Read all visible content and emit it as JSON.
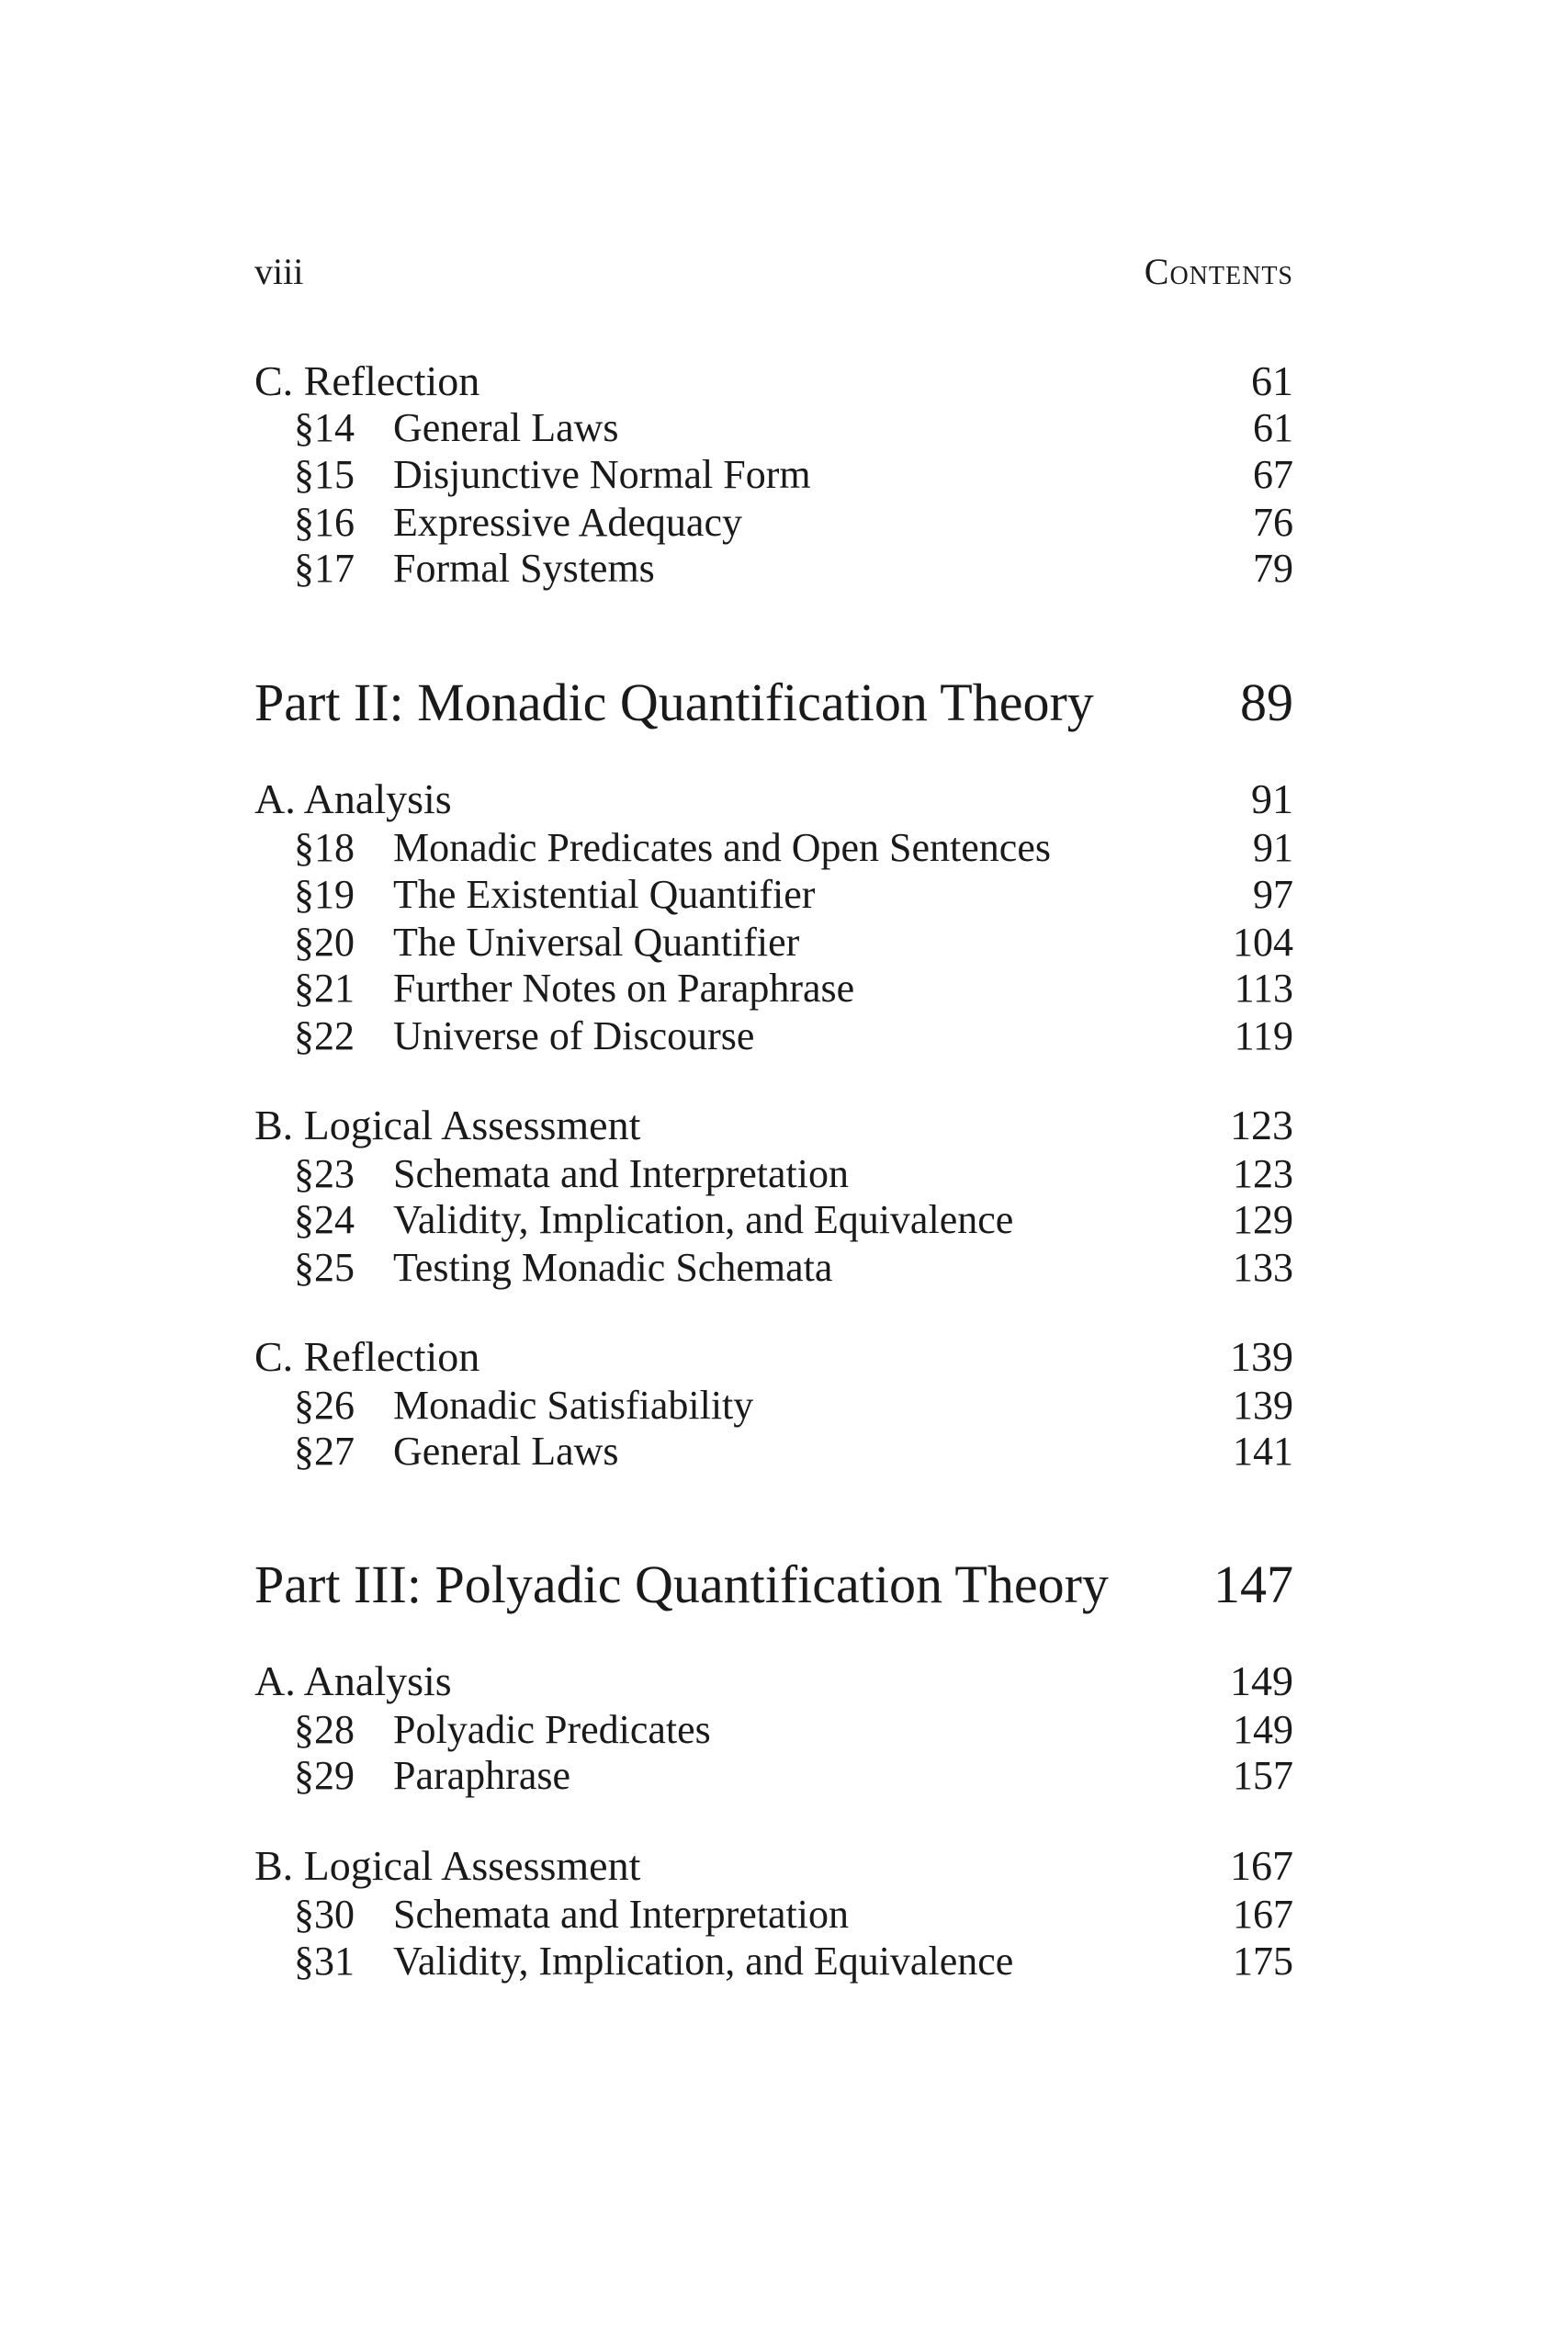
{
  "header": {
    "page_number": "viii",
    "running_title": "Contents"
  },
  "toc": [
    {
      "kind": "section",
      "label": "C. Reflection",
      "page": "61"
    },
    {
      "kind": "entry",
      "num": "§14",
      "title": "General Laws",
      "page": "61"
    },
    {
      "kind": "entry",
      "num": "§15",
      "title": "Disjunctive Normal Form",
      "page": "67"
    },
    {
      "kind": "entry",
      "num": "§16",
      "title": "Expressive Adequacy",
      "page": "76"
    },
    {
      "kind": "entry",
      "num": "§17",
      "title": "Formal Systems",
      "page": "79"
    },
    {
      "kind": "part",
      "label": "Part II: Monadic Quantification Theory",
      "page": "89"
    },
    {
      "kind": "section",
      "label": "A. Analysis",
      "page": "91"
    },
    {
      "kind": "entry",
      "num": "§18",
      "title": "Monadic Predicates and Open Sentences",
      "page": "91"
    },
    {
      "kind": "entry",
      "num": "§19",
      "title": "The Existential Quantifier",
      "page": "97"
    },
    {
      "kind": "entry",
      "num": "§20",
      "title": "The Universal Quantifier",
      "page": "104"
    },
    {
      "kind": "entry",
      "num": "§21",
      "title": "Further Notes on Paraphrase",
      "page": "113"
    },
    {
      "kind": "entry",
      "num": "§22",
      "title": "Universe of Discourse",
      "page": "119"
    },
    {
      "kind": "section",
      "label": "B. Logical Assessment",
      "page": "123"
    },
    {
      "kind": "entry",
      "num": "§23",
      "title": "Schemata and Interpretation",
      "page": "123"
    },
    {
      "kind": "entry",
      "num": "§24",
      "title": "Validity, Implication, and Equivalence",
      "page": "129"
    },
    {
      "kind": "entry",
      "num": "§25",
      "title": "Testing Monadic Schemata",
      "page": "133"
    },
    {
      "kind": "section",
      "label": "C. Reflection",
      "page": "139"
    },
    {
      "kind": "entry",
      "num": "§26",
      "title": "Monadic Satisfiability",
      "page": "139"
    },
    {
      "kind": "entry",
      "num": "§27",
      "title": "General Laws",
      "page": "141"
    },
    {
      "kind": "part",
      "label": "Part III: Polyadic Quantification Theory",
      "page": "147"
    },
    {
      "kind": "section",
      "label": "A. Analysis",
      "page": "149"
    },
    {
      "kind": "entry",
      "num": "§28",
      "title": "Polyadic Predicates",
      "page": "149"
    },
    {
      "kind": "entry",
      "num": "§29",
      "title": "Paraphrase",
      "page": "157"
    },
    {
      "kind": "section",
      "label": "B. Logical Assessment",
      "page": "167"
    },
    {
      "kind": "entry",
      "num": "§30",
      "title": "Schemata and Interpretation",
      "page": "167"
    },
    {
      "kind": "entry",
      "num": "§31",
      "title": "Validity, Implication, and Equivalence",
      "page": "175"
    }
  ]
}
